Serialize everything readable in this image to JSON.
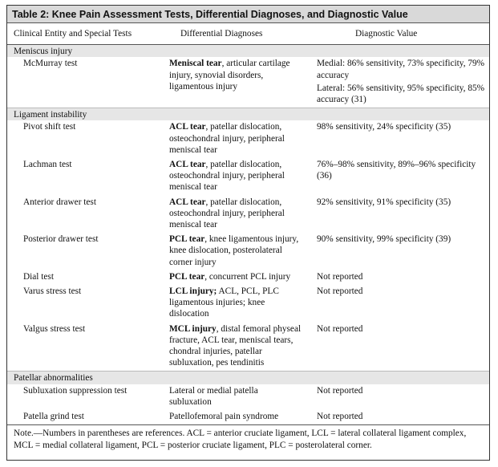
{
  "table": {
    "title": "Table 2: Knee Pain Assessment Tests, Differential Diagnoses, and Diagnostic Value",
    "columns": [
      "Clinical Entity and Special Tests",
      "Differential Diagnoses",
      "Diagnostic Value"
    ],
    "sections": [
      {
        "title": "Meniscus injury",
        "rows": [
          {
            "test": "McMurray test",
            "diagnosis": {
              "emphasis": "Meniscal tear",
              "text": ", articular cartilage injury, synovial disorders, ligamentous injury"
            },
            "value": [
              "Medial: 86% sensitivity, 73% specificity, 79% accuracy",
              "Lateral: 56% sensitivity, 95% specificity, 85% accuracy (31)"
            ]
          }
        ]
      },
      {
        "title": "Ligament instability",
        "rows": [
          {
            "test": "Pivot shift test",
            "diagnosis": {
              "emphasis": "ACL tear",
              "text": ", patellar dislocation, osteochondral injury, peripheral meniscal tear"
            },
            "value": [
              "98% sensitivity, 24% specificity (35)"
            ]
          },
          {
            "test": "Lachman test",
            "diagnosis": {
              "emphasis": "ACL tear",
              "text": ", patellar dislocation, osteochondral injury, peripheral meniscal tear"
            },
            "value": [
              "76%–98% sensitivity, 89%–96% specificity (36)"
            ]
          },
          {
            "test": "Anterior drawer test",
            "diagnosis": {
              "emphasis": "ACL tear",
              "text": ", patellar dislocation, osteochondral injury, peripheral meniscal tear"
            },
            "value": [
              "92% sensitivity, 91% specificity (35)"
            ]
          },
          {
            "test": "Posterior drawer test",
            "diagnosis": {
              "emphasis": "PCL tear",
              "text": ", knee ligamentous injury, knee dislocation, posterolateral corner injury"
            },
            "value": [
              "90% sensitivity, 99% specificity (39)"
            ]
          },
          {
            "test": "Dial test",
            "diagnosis": {
              "emphasis": "PCL tear",
              "text": ", concurrent PCL injury"
            },
            "value": [
              "Not reported"
            ]
          },
          {
            "test": "Varus stress test",
            "diagnosis": {
              "emphasis": "LCL injury;",
              "text": " ACL, PCL, PLC ligamentous injuries; knee dislocation"
            },
            "value": [
              "Not reported"
            ]
          },
          {
            "test": "Valgus stress test",
            "diagnosis": {
              "emphasis": "MCL injury",
              "text": ", distal femoral physeal fracture, ACL tear, meniscal tears, chondral injuries, patellar subluxation, pes tendinitis"
            },
            "value": [
              "Not reported"
            ]
          }
        ]
      },
      {
        "title": "Patellar abnormalities",
        "rows": [
          {
            "test": "Subluxation suppression test",
            "diagnosis": {
              "text": "Lateral or medial patella subluxation"
            },
            "value": [
              "Not reported"
            ]
          },
          {
            "test": "Patella grind test",
            "diagnosis": {
              "text": "Patellofemoral pain syndrome"
            },
            "value": [
              "Not reported"
            ]
          }
        ]
      }
    ],
    "note": "Note.—Numbers in parentheses are references. ACL = anterior cruciate ligament, LCL = lateral collateral ligament complex, MCL = medial collateral ligament, PCL = posterior cruciate ligament, PLC = posterolateral corner."
  }
}
